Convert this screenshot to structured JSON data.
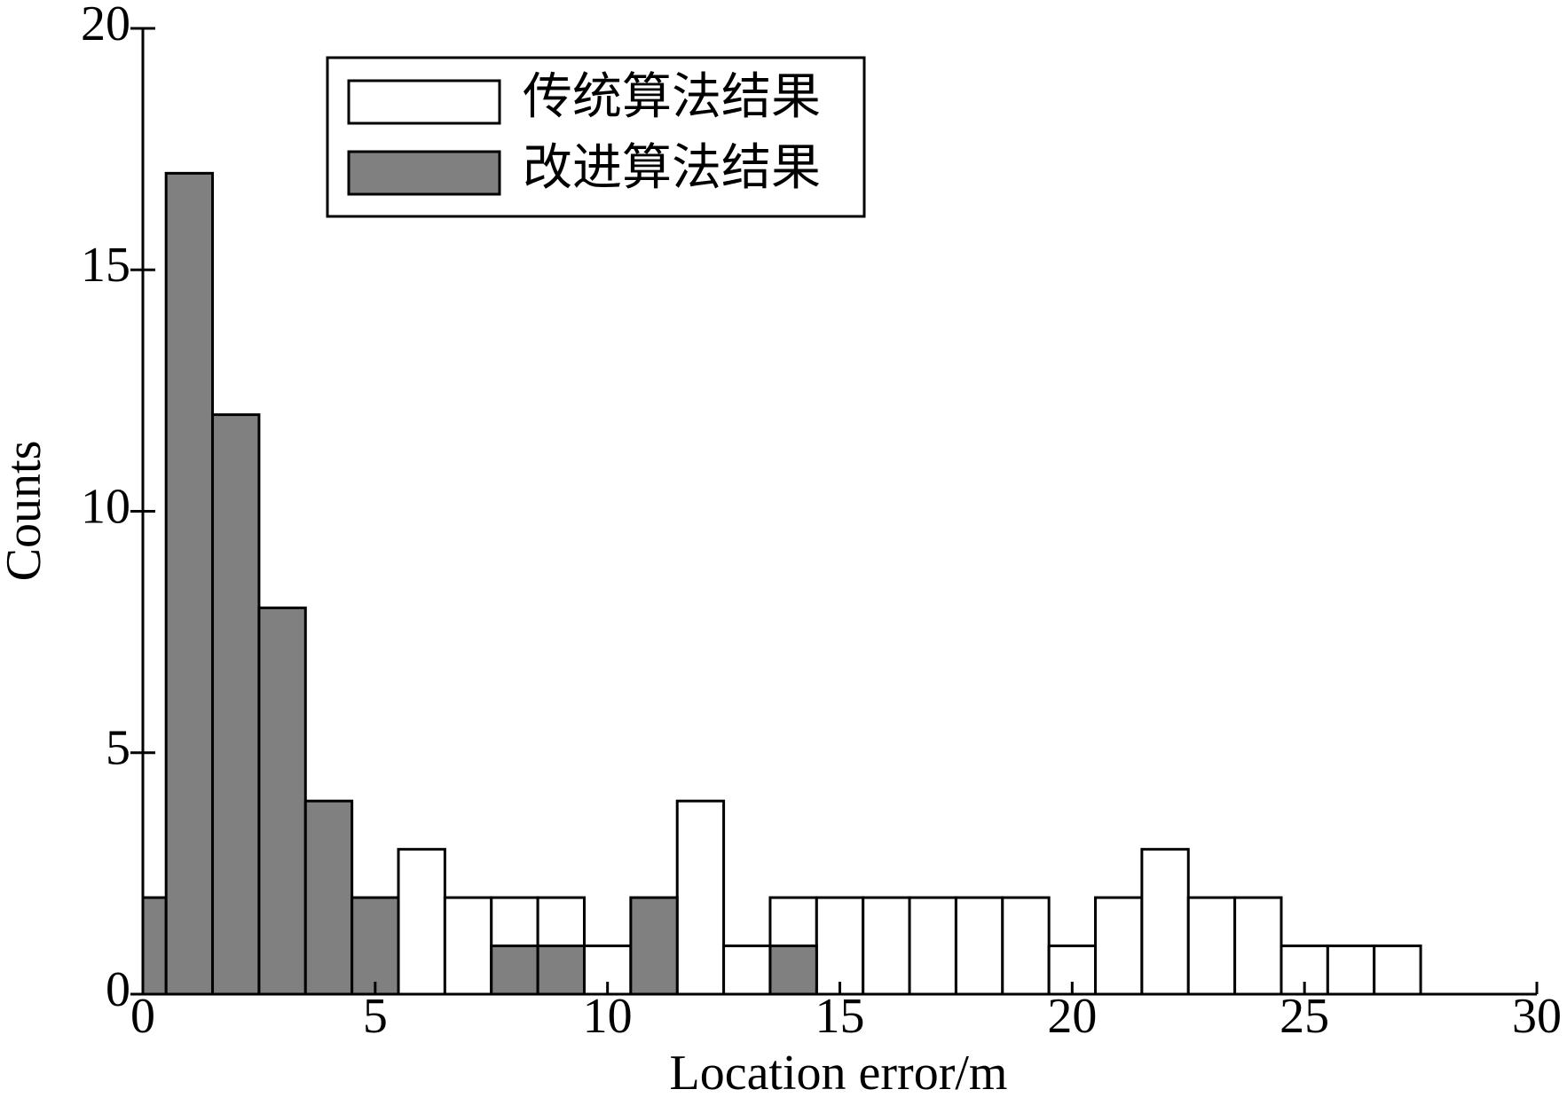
{
  "chart_data": {
    "type": "histogram",
    "x_label": "Location error/m",
    "y_label": "Counts",
    "bins": [
      -0.5,
      0.5,
      1.5,
      2.5,
      3.5,
      4.5,
      5.5,
      6.5,
      7.5,
      8.5,
      9.5,
      10.5,
      11.5,
      12.5,
      13.5,
      14.5,
      15.5,
      16.5,
      17.5,
      18.5,
      19.5,
      20.5,
      21.5,
      22.5,
      23.5,
      24.5,
      25.5,
      26.5,
      27.5,
      28.5,
      29.5
    ],
    "series": [
      {
        "name": "传统算法结果",
        "color": "#ffffff",
        "values": [
          0,
          0,
          0,
          0,
          0,
          0,
          3,
          2,
          2,
          2,
          1,
          0,
          4,
          1,
          2,
          2,
          2,
          2,
          2,
          2,
          1,
          2,
          3,
          2,
          2,
          1,
          1,
          1,
          0,
          0
        ]
      },
      {
        "name": "改进算法结果",
        "color": "#808080",
        "values": [
          2,
          17,
          12,
          8,
          4,
          2,
          0,
          0,
          1,
          1,
          0,
          2,
          0,
          0,
          1,
          0,
          0,
          0,
          0,
          0,
          0,
          0,
          0,
          0,
          0,
          0,
          0,
          0,
          0,
          0
        ]
      }
    ],
    "xlim": [
      0,
      30
    ],
    "xticks": [
      0,
      5,
      10,
      15,
      20,
      25,
      30
    ],
    "ylim": [
      0,
      20
    ],
    "yticks": [
      0,
      5,
      10,
      15,
      20
    ],
    "legend": "upper-center"
  }
}
